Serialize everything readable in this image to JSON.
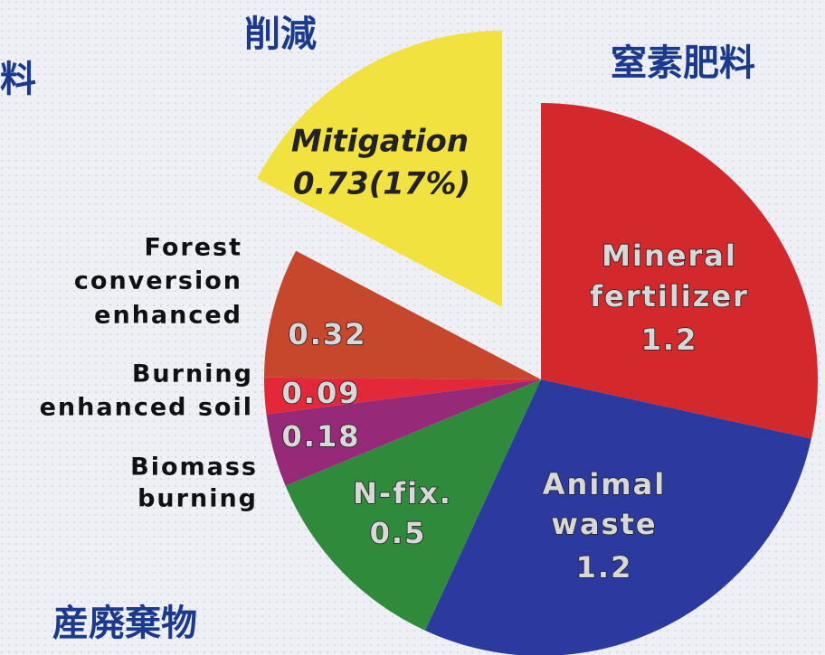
{
  "chart_data": {
    "type": "pie",
    "labels": [
      [
        "Mineral",
        "fertilizer"
      ],
      [
        "Animal",
        "waste"
      ],
      [
        "N-fix."
      ],
      [
        "Biomass",
        "burning"
      ],
      [
        "Burning",
        "enhanced  soil"
      ],
      [
        "Forest",
        "conversion",
        "enhanced"
      ],
      [
        "Mitigation"
      ]
    ],
    "values": [
      1.2,
      1.2,
      0.5,
      0.18,
      0.09,
      0.32,
      0.73
    ],
    "value_labels": [
      "1.2",
      "1.2",
      "0.5",
      "0.18",
      "0.09",
      "0.32",
      "0.73(17%)"
    ],
    "colors": [
      "#d3282c",
      "#2c3a9f",
      "#2f8a3c",
      "#962a78",
      "#e3283a",
      "#c6472c",
      "#f2e23f"
    ],
    "exploded": [
      false,
      false,
      false,
      false,
      false,
      false,
      true
    ],
    "annotations": [
      "削減",
      "窒素肥料",
      "料",
      "産廃棄物"
    ]
  }
}
